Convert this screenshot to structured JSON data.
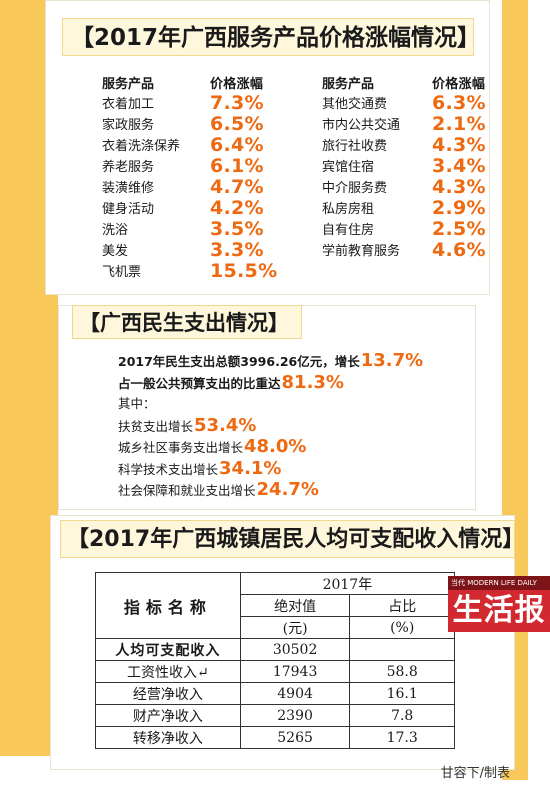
{
  "section1": {
    "title": "【2017年广西服务产品价格涨幅情况】",
    "header_service": "服务产品",
    "header_increase": "价格涨幅",
    "left": [
      {
        "service": "衣着加工",
        "increase": "7.3%"
      },
      {
        "service": "家政服务",
        "increase": "6.5%"
      },
      {
        "service": "衣着洗涤保养",
        "increase": "6.4%"
      },
      {
        "service": "养老服务",
        "increase": "6.1%"
      },
      {
        "service": "装潢维修",
        "increase": "4.7%"
      },
      {
        "service": "健身活动",
        "increase": "4.2%"
      },
      {
        "service": "洗浴",
        "increase": "3.5%"
      },
      {
        "service": "美发",
        "increase": "3.3%"
      },
      {
        "service": "飞机票",
        "increase": "15.5%"
      }
    ],
    "right": [
      {
        "service": "其他交通费",
        "increase": "6.3%"
      },
      {
        "service": "市内公共交通",
        "increase": "2.1%"
      },
      {
        "service": "旅行社收费",
        "increase": "4.3%"
      },
      {
        "service": "宾馆住宿",
        "increase": "3.4%"
      },
      {
        "service": "中介服务费",
        "increase": "4.3%"
      },
      {
        "service": "私房房租",
        "increase": "2.9%"
      },
      {
        "service": "自有住房",
        "increase": "2.5%"
      },
      {
        "service": "学前教育服务",
        "increase": "4.6%"
      }
    ]
  },
  "section2": {
    "title": "【广西民生支出情况】",
    "lines": [
      {
        "text": "2017年民生支出总额3996.26亿元，增长",
        "value": "13.7%",
        "bold": true
      },
      {
        "text": "占一般公共预算支出的比重达",
        "value": "81.3%",
        "bold": true
      },
      {
        "text": "其中：",
        "value": "",
        "bold": false
      },
      {
        "text": "扶贫支出增长",
        "value": "53.4%",
        "bold": false
      },
      {
        "text": "城乡社区事务支出增长",
        "value": "48.0%",
        "bold": false
      },
      {
        "text": "科学技术支出增长",
        "value": "34.1%",
        "bold": false
      },
      {
        "text": "社会保障和就业支出增长",
        "value": "24.7%",
        "bold": false
      }
    ]
  },
  "section3": {
    "title": "【2017年广西城镇居民人均可支配收入情况】",
    "header_indicator": "指标名称",
    "header_year": "2017年",
    "header_absolute": "绝对值",
    "header_absolute_unit": "(元)",
    "header_share": "占比",
    "header_share_unit": "(%)",
    "rows": [
      {
        "name": "人均可支配收入",
        "value": "30502",
        "share": ""
      },
      {
        "name": "工资性收入↵",
        "value": "17943",
        "share": "58.8"
      },
      {
        "name": "经营净收入",
        "value": "4904",
        "share": "16.1"
      },
      {
        "name": "财产净收入",
        "value": "2390",
        "share": "7.8"
      },
      {
        "name": "转移净收入",
        "value": "5265",
        "share": "17.3"
      }
    ]
  },
  "brand": {
    "small": "当代 MODERN LIFE DAILY",
    "main": "生活报"
  },
  "credit": "甘容下/制表",
  "colors": {
    "accent_orange": "#ee6a12",
    "strip_yellow": "#f8c85a",
    "brand_red": "#d2282f"
  }
}
